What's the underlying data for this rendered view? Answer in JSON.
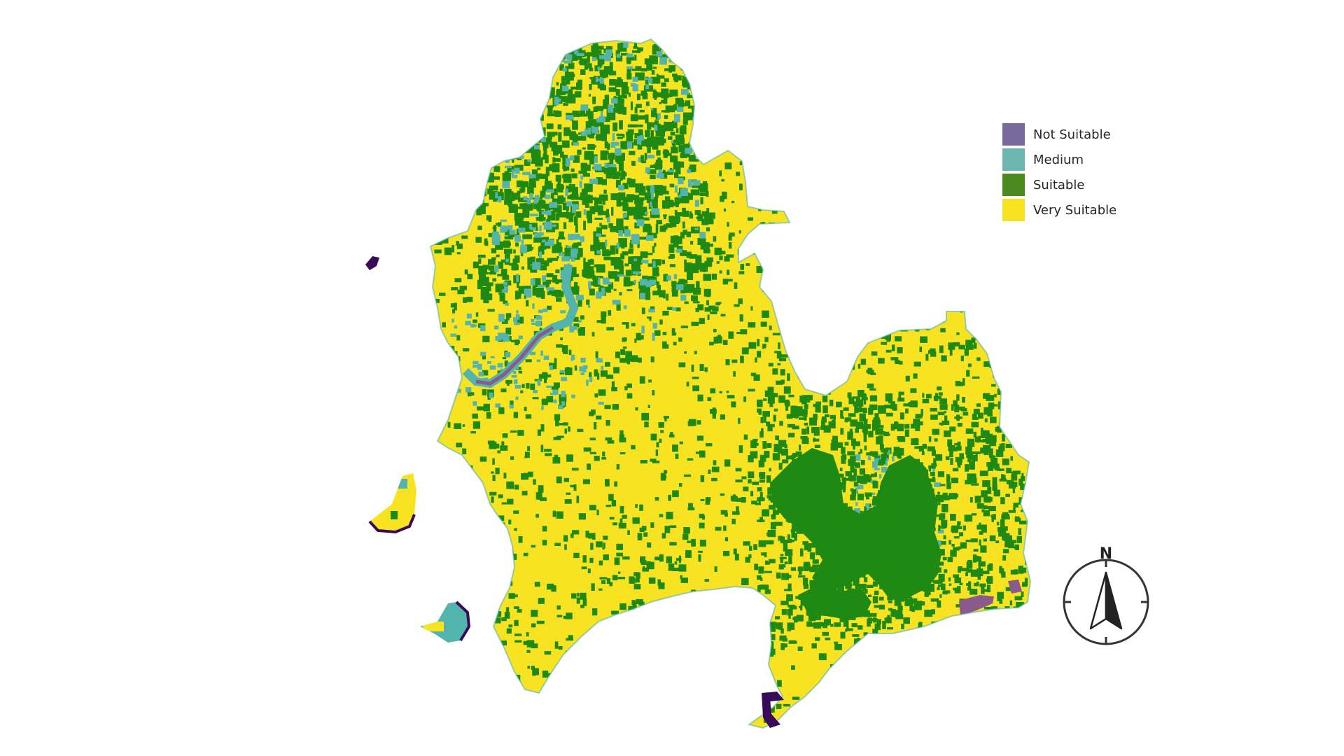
{
  "map": {
    "classes": [
      {
        "label": "Not Suitable",
        "color": "#7a6a9c"
      },
      {
        "label": "Medium",
        "color": "#6db5b0"
      },
      {
        "label": "Suitable",
        "color": "#4b8a1e"
      },
      {
        "label": "Very Suitable",
        "color": "#f7e322"
      }
    ],
    "raster_colors": {
      "very_suitable": "#f7e322",
      "suitable": "#1e8a14",
      "medium": "#53b4ad",
      "not_suitable": "#8a5a8c",
      "water_edge": "#3a0a5a"
    }
  },
  "north_arrow": {
    "label": "N",
    "icon": "north-arrow-icon"
  }
}
